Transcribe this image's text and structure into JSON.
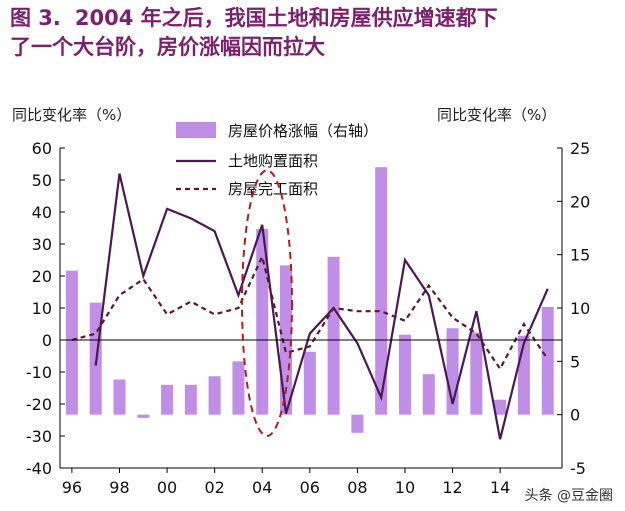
{
  "title": {
    "figure": "图 3.",
    "line1": "2004 年之后，我国土地和房屋供应增速都下",
    "line2": "了一个大台阶，房价涨幅因而拉大"
  },
  "watermark": "头条 @豆金圈",
  "colors": {
    "title": "#7b1f6e",
    "bar": "#c08ee6",
    "land_line": "#4a1852",
    "house_line": "#5a1a2e",
    "highlight": "#b01e1e"
  },
  "chart_data": {
    "type": "bar",
    "left_axis": {
      "label": "同比变化率（%）",
      "min": -40,
      "max": 60,
      "ticks": [
        "60",
        "50",
        "40",
        "30",
        "20",
        "10",
        "0",
        "-10",
        "-20",
        "-30",
        "-40"
      ]
    },
    "right_axis": {
      "label": "同比变化率（%）",
      "min": -5,
      "max": 25,
      "ticks": [
        "25",
        "20",
        "15",
        "10",
        "5",
        "0",
        "-5"
      ]
    },
    "x_ticks": [
      "96",
      "98",
      "00",
      "02",
      "04",
      "06",
      "08",
      "10",
      "12",
      "14"
    ],
    "legend_position": "top-center",
    "grid": false,
    "series": [
      {
        "name": "房屋价格涨幅（右轴）",
        "kind": "bar",
        "axis": "right",
        "x": [
          1996,
          1997,
          1998,
          1999,
          2000,
          2001,
          2002,
          2003,
          2004,
          2005,
          2006,
          2007,
          2008,
          2009,
          2010,
          2011,
          2012,
          2013,
          2014,
          2015,
          2016
        ],
        "values": [
          13.5,
          10.5,
          3.3,
          -0.3,
          2.8,
          2.8,
          3.6,
          5.0,
          17.4,
          14.0,
          5.9,
          14.8,
          -1.7,
          23.2,
          7.5,
          3.8,
          8.1,
          7.7,
          1.4,
          7.4,
          10.1
        ]
      },
      {
        "name": "土地购置面积",
        "kind": "line",
        "axis": "left",
        "x": [
          1997,
          1998,
          1999,
          2000,
          2001,
          2002,
          2003,
          2004,
          2005,
          2006,
          2007,
          2008,
          2009,
          2010,
          2011,
          2012,
          2013,
          2014,
          2015,
          2016
        ],
        "values": [
          -8,
          52,
          20,
          41,
          38,
          34,
          14,
          36,
          -23,
          2,
          10,
          -1,
          -18,
          25,
          14,
          -20,
          9,
          -31,
          -1,
          16
        ]
      },
      {
        "name": "房屋完工面积",
        "kind": "line",
        "dashed": true,
        "axis": "left",
        "x": [
          1996,
          1997,
          1998,
          1999,
          2000,
          2001,
          2002,
          2003,
          2004,
          2005,
          2006,
          2007,
          2008,
          2009,
          2010,
          2011,
          2012,
          2013,
          2014,
          2015,
          2016
        ],
        "values": [
          0,
          2,
          14,
          19,
          8,
          12,
          8,
          10,
          26,
          -4,
          -2,
          10,
          9,
          9,
          6,
          17,
          7,
          2,
          -9,
          5,
          -6
        ]
      }
    ],
    "annotation": "dashed ellipse around 2004"
  }
}
